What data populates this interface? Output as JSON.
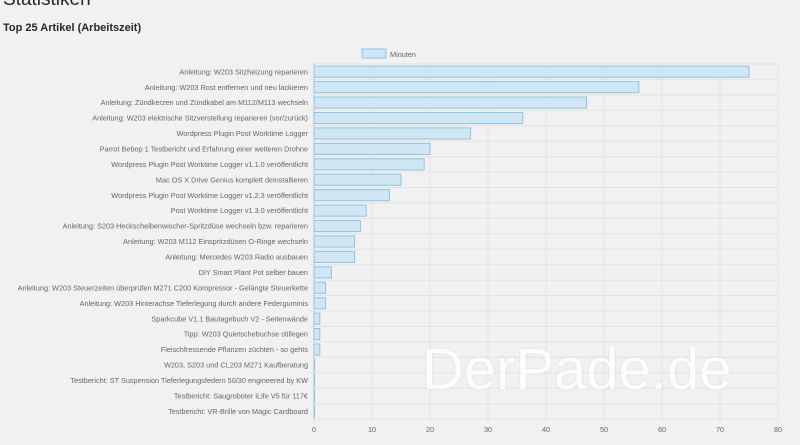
{
  "page": {
    "heading": "Statistiken",
    "section_title": "Top 25 Artikel (Arbeitszeit)",
    "watermark": "DerPade.de"
  },
  "colors": {
    "bar_fill": "#cfe7f5",
    "bar_stroke": "#8fc3e2",
    "grid": "#e2e2e2",
    "label": "#666666",
    "background": "#f1f1f1"
  },
  "chart_data": {
    "type": "bar",
    "orientation": "horizontal",
    "legend_placement": "top-center",
    "grid": true,
    "xlim": [
      0,
      80
    ],
    "xticks": [
      0,
      10,
      20,
      30,
      40,
      50,
      60,
      70,
      80
    ],
    "series": [
      {
        "name": "Minuten",
        "values": [
          75,
          56,
          47,
          36,
          27,
          20,
          19,
          15,
          13,
          9,
          8,
          7,
          7,
          3,
          2,
          2,
          1,
          1,
          1,
          0.1,
          0.1,
          0.1,
          0.1
        ]
      }
    ],
    "categories": [
      "Anleitung: W203 Sitzheizung reparieren",
      "Anleitung: W203 Rost entfernen und neu lackieren",
      "Anleitung: Zündkerzen und Zündkabel am M112/M113 wechseln",
      "Anleitung: W203 elektrische Sitzverstellung reparieren (vor/zurück)",
      "Wordpress Plugin Post Worktime Logger",
      "Parrot Bebop 1 Testbericht und Erfahrung einer weiteren Drohne",
      "Wordpress Plugin Post Worktime Logger v1.1.0 veröffentlicht",
      "Mac OS X Drive Genius komplett deinstallieren",
      "Wordpress Plugin Post Worktime Logger v1.2.3 veröffentlicht",
      "Post Worktime Logger v1.3.0 veröffentlicht",
      "Anleitung: S203 Heckscheibenwischer-Spritzdüse wechseln bzw. reparieren",
      "Anleitung: W203 M112 Einspritzdüsen O-Ringe wechseln",
      "Anleitung: Mercedes W203 Radio ausbauen",
      "DIY Smart Plant Pot selber bauen",
      "Anleitung: W203 Steuerzeiten überprüfen M271 C200 Kompressor - Gelängte Steuerkette",
      "Anleitung: W203 Hinterachse Tieferlegung durch andere Federgummis",
      "Sparkcube V1.1 Bautagebuch V2 - Seitenwände",
      "Tipp: W203 Quietschebuchse stillegen",
      "Fleischfressende Pflanzen züchten - so gehts",
      "W203, S203 und CL203  M271 Kaufberatung",
      "Testbericht: ST Suspension Tieferlegungsfedern 50/30 engineered by KW",
      "Testbericht: Saugroboter iLife V5 für 117€",
      "Testbericht: VR-Brille von Magic Cardboard"
    ]
  }
}
